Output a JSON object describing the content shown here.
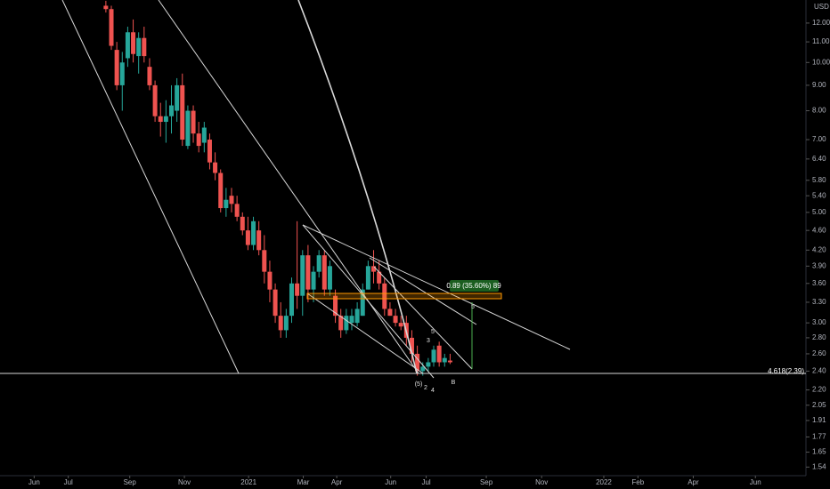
{
  "chart_data": {
    "type": "candlestick",
    "currency": "USD",
    "up_color": "#26a69a",
    "down_color": "#ef5350",
    "log_y": true,
    "x": [
      10.5,
      11.3,
      12.1,
      12.9,
      13.7,
      14.5,
      15.3,
      16.1,
      16.9,
      17.7,
      18.5,
      19.3,
      20.1,
      20.9,
      21.7,
      22.5,
      23.3,
      24.1,
      24.9,
      25.7,
      26.5,
      27.3,
      28.1,
      28.9,
      29.7,
      30.5,
      31.3,
      32.1,
      32.9,
      33.7,
      34.5,
      35.3,
      36.1,
      36.9,
      37.7,
      38.5,
      39.3,
      40.1,
      40.9,
      41.7,
      42.5,
      43.3,
      44.1,
      44.9,
      45.7,
      46.5,
      47.3,
      48.1,
      48.9,
      49.7,
      50.5,
      51.3,
      52.1,
      52.9,
      53.7,
      54.5,
      55.3,
      56.1,
      56.9,
      57.7,
      58.5,
      59.3,
      60.1,
      60.9
    ],
    "open": [
      13.0,
      12.8,
      10.6,
      9.0,
      10.2,
      11.5,
      10.3,
      11.2,
      9.8,
      9.0,
      7.8,
      7.6,
      7.8,
      8.0,
      9.0,
      6.8,
      8.0,
      7.2,
      6.9,
      7.0,
      6.3,
      6.0,
      5.1,
      5.4,
      5.2,
      4.9,
      4.6,
      4.3,
      4.6,
      4.2,
      3.8,
      3.5,
      3.1,
      2.9,
      3.1,
      3.6,
      3.4,
      4.1,
      3.5,
      3.8,
      4.1,
      3.5,
      3.4,
      3.1,
      2.9,
      3.0,
      3.0,
      3.1,
      3.5,
      3.9,
      3.8,
      3.6,
      3.2,
      3.1,
      3.0,
      3.0,
      2.8,
      2.6,
      2.4,
      2.45,
      2.5,
      2.7,
      2.5,
      2.52
    ],
    "high": [
      13.3,
      13.0,
      11.0,
      10.5,
      11.8,
      12.2,
      11.5,
      11.8,
      10.2,
      9.2,
      8.3,
      8.4,
      9.0,
      9.3,
      9.5,
      8.2,
      8.2,
      7.6,
      7.6,
      7.2,
      6.6,
      6.1,
      5.6,
      5.6,
      5.4,
      5.0,
      4.9,
      4.9,
      4.8,
      4.5,
      4.0,
      3.6,
      3.3,
      3.2,
      3.7,
      4.8,
      4.2,
      4.3,
      3.9,
      4.2,
      4.2,
      4.0,
      3.5,
      3.2,
      3.2,
      3.2,
      3.3,
      3.6,
      4.0,
      4.2,
      4.0,
      3.7,
      3.3,
      3.2,
      3.1,
      3.1,
      2.9,
      2.7,
      2.5,
      2.55,
      2.7,
      2.75,
      2.6,
      2.6
    ],
    "low": [
      12.6,
      10.6,
      8.8,
      8.0,
      9.8,
      10.0,
      9.5,
      10.0,
      8.8,
      7.6,
      7.1,
      6.9,
      7.2,
      7.6,
      6.8,
      6.7,
      6.9,
      6.6,
      6.6,
      6.1,
      5.8,
      5.0,
      4.9,
      5.0,
      4.8,
      4.5,
      4.2,
      4.2,
      4.1,
      3.6,
      3.3,
      3.0,
      2.8,
      2.8,
      3.0,
      3.2,
      3.1,
      3.3,
      3.3,
      3.7,
      3.4,
      3.4,
      3.0,
      2.8,
      2.85,
      2.9,
      2.95,
      3.1,
      3.5,
      3.6,
      3.5,
      3.1,
      3.1,
      2.95,
      2.9,
      2.7,
      2.5,
      2.35,
      2.35,
      2.4,
      2.45,
      2.45,
      2.45,
      2.48
    ],
    "close": [
      12.8,
      10.8,
      9.0,
      10.0,
      11.5,
      10.4,
      11.2,
      10.3,
      9.0,
      7.8,
      7.6,
      7.8,
      8.2,
      9.0,
      7.0,
      8.0,
      7.2,
      6.8,
      7.4,
      6.3,
      6.0,
      5.1,
      5.3,
      5.2,
      4.9,
      4.6,
      4.3,
      4.8,
      4.2,
      3.8,
      3.5,
      3.1,
      2.9,
      3.1,
      3.6,
      3.4,
      4.1,
      3.5,
      3.8,
      4.1,
      3.5,
      3.9,
      3.1,
      2.9,
      3.1,
      3.1,
      3.2,
      3.5,
      3.9,
      3.8,
      3.6,
      3.2,
      3.1,
      3.0,
      2.95,
      2.8,
      2.6,
      2.4,
      2.45,
      2.5,
      2.65,
      2.5,
      2.55,
      2.5
    ],
    "xlim": [
      -5,
      113
    ],
    "xticks": [
      {
        "value": 0,
        "label": "Jun"
      },
      {
        "value": 5,
        "label": "Jul"
      },
      {
        "value": 14,
        "label": "Sep"
      },
      {
        "value": 22,
        "label": "Nov"
      },
      {
        "value": 31.4,
        "label": "2021"
      },
      {
        "value": 39.4,
        "label": "Mar"
      },
      {
        "value": 44.3,
        "label": "Apr"
      },
      {
        "value": 52.2,
        "label": "Jun"
      },
      {
        "value": 57.4,
        "label": "Jul"
      },
      {
        "value": 66.2,
        "label": "Sep"
      },
      {
        "value": 74.3,
        "label": "Nov"
      },
      {
        "value": 83.4,
        "label": "2022"
      },
      {
        "value": 88.4,
        "label": "Feb"
      },
      {
        "value": 96.5,
        "label": "Apr"
      },
      {
        "value": 105.6,
        "label": "Jun"
      }
    ],
    "ylim": [
      1.48,
      13.35
    ],
    "yticks": [
      {
        "value": 12,
        "label": "12.00"
      },
      {
        "value": 11,
        "label": "11.00"
      },
      {
        "value": 10,
        "label": "10.00"
      },
      {
        "value": 9,
        "label": "9.00"
      },
      {
        "value": 8,
        "label": "8.00"
      },
      {
        "value": 7,
        "label": "7.00"
      },
      {
        "value": 6.4,
        "label": "6.40"
      },
      {
        "value": 5.8,
        "label": "5.80"
      },
      {
        "value": 5.4,
        "label": "5.40"
      },
      {
        "value": 5,
        "label": "5.00"
      },
      {
        "value": 4.6,
        "label": "4.60"
      },
      {
        "value": 4.2,
        "label": "4.20"
      },
      {
        "value": 3.9,
        "label": "3.90"
      },
      {
        "value": 3.6,
        "label": "3.60"
      },
      {
        "value": 3.3,
        "label": "3.30"
      },
      {
        "value": 3,
        "label": "3.00"
      },
      {
        "value": 2.8,
        "label": "2.80"
      },
      {
        "value": 2.6,
        "label": "2.60"
      },
      {
        "value": 2.4,
        "label": "2.40"
      },
      {
        "value": 2.2,
        "label": "2.20"
      },
      {
        "value": 2.05,
        "label": "2.05"
      },
      {
        "value": 1.91,
        "label": "1.91"
      },
      {
        "value": 1.77,
        "label": "1.77"
      },
      {
        "value": 1.65,
        "label": "1.65"
      },
      {
        "value": 1.54,
        "label": "1.54"
      }
    ],
    "annotations": {
      "measure": "0.89 (35.60%) 89",
      "fib_level": "4.618(2.39)",
      "waves": [
        "(5)",
        "2",
        "3",
        "4",
        "5",
        "B",
        "5"
      ]
    }
  }
}
